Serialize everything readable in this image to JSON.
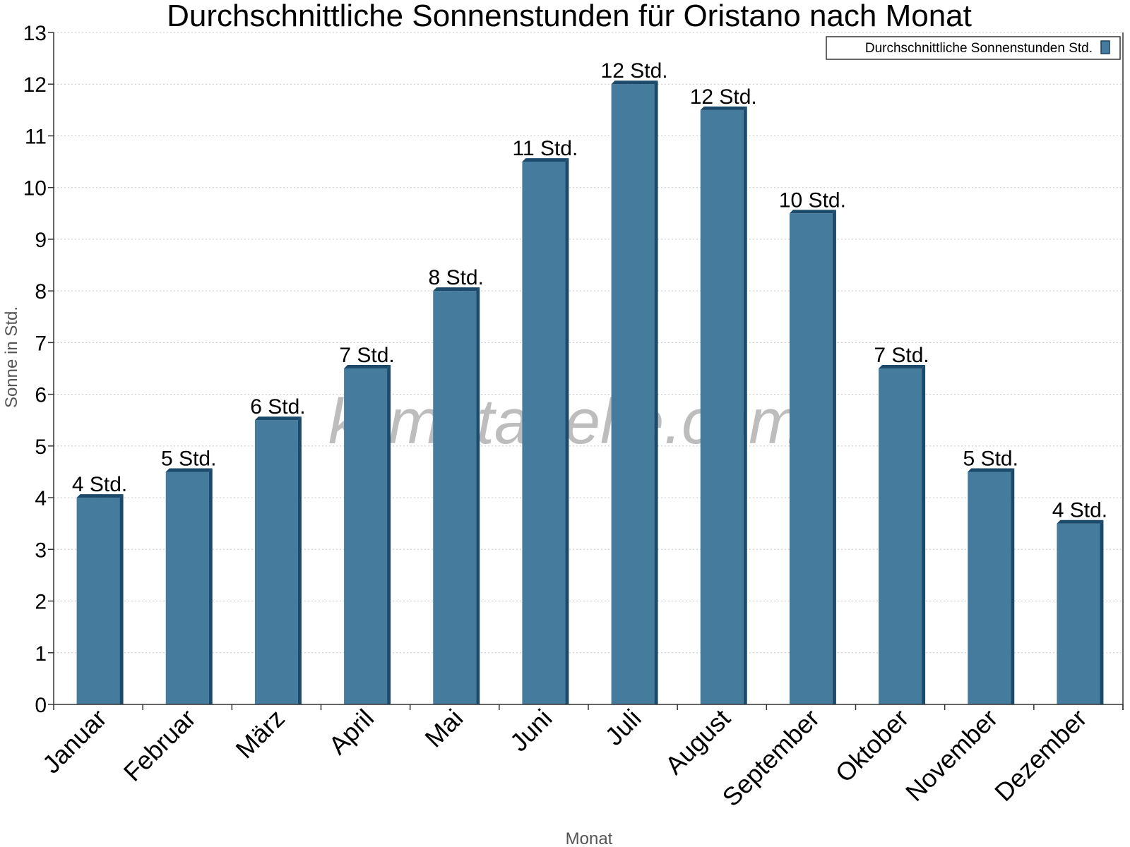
{
  "chart_data": {
    "type": "bar",
    "title": "Durchschnittliche Sonnenstunden für Oristano nach Monat",
    "xlabel": "Monat",
    "ylabel": "Sonne in Std.",
    "ylim": [
      0,
      13
    ],
    "yticks": [
      "0",
      "1",
      "2",
      "3",
      "4",
      "5",
      "6",
      "7",
      "8",
      "9",
      "10",
      "11",
      "12",
      "13"
    ],
    "grid": true,
    "legend_position": "top-right",
    "categories": [
      "Januar",
      "Februar",
      "März",
      "April",
      "Mai",
      "Juni",
      "Juli",
      "August",
      "September",
      "Oktober",
      "November",
      "Dezember"
    ],
    "series": [
      {
        "name": "Durchschnittliche Sonnenstunden Std.",
        "color": "#457b9d",
        "values": [
          4,
          4.5,
          5.5,
          6.5,
          8,
          10.5,
          12,
          11.5,
          9.5,
          6.5,
          4.5,
          3.5
        ],
        "labels": [
          "4 Std.",
          "5 Std.",
          "6 Std.",
          "7 Std.",
          "8 Std.",
          "11 Std.",
          "12 Std.",
          "12 Std.",
          "10 Std.",
          "7 Std.",
          "5 Std.",
          "4 Std."
        ]
      }
    ],
    "watermark": "klimatabelle.com"
  }
}
